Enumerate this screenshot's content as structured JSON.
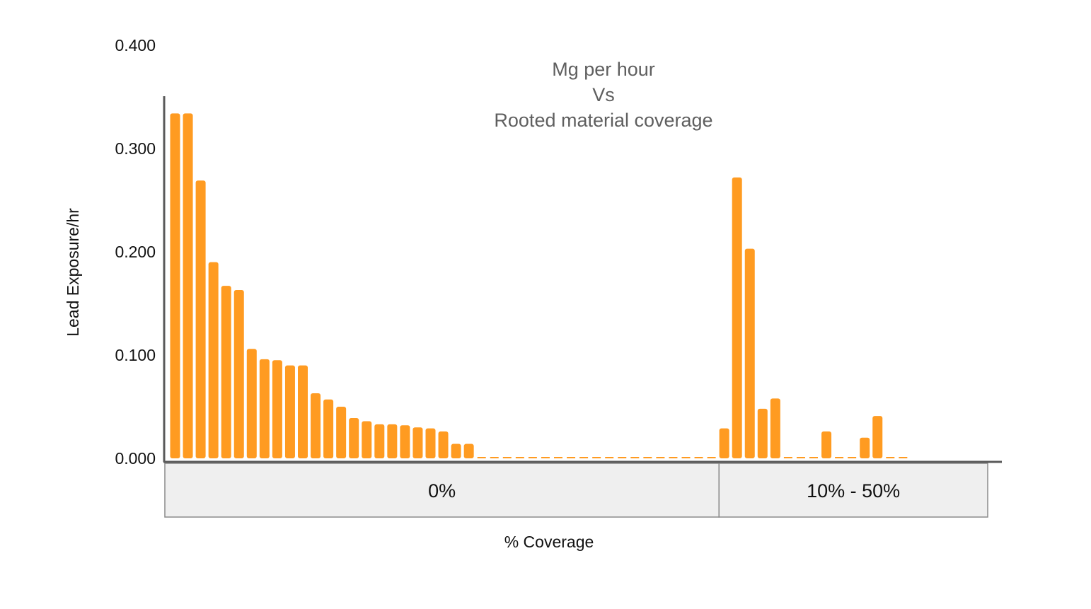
{
  "chart_data": {
    "type": "bar",
    "title_lines": [
      "Mg per hour",
      "Vs",
      "Rooted material coverage"
    ],
    "ylabel": "Lead Exposure/hr",
    "xlabel": "% Coverage",
    "ylim": [
      0,
      0.4
    ],
    "yticks": [
      "0.000",
      "0.100",
      "0.200",
      "0.300",
      "0.400"
    ],
    "color": "#ff9b21",
    "grid": false,
    "legend": "none",
    "groups": [
      {
        "label": "0%",
        "start": 0,
        "count": 43
      },
      {
        "label": "10% - 50%",
        "start": 43,
        "count": 15
      }
    ],
    "values": [
      0.334,
      0.334,
      0.269,
      0.19,
      0.167,
      0.163,
      0.106,
      0.096,
      0.095,
      0.09,
      0.09,
      0.063,
      0.057,
      0.05,
      0.039,
      0.036,
      0.033,
      0.033,
      0.032,
      0.03,
      0.029,
      0.026,
      0.014,
      0.014,
      0,
      0,
      0,
      0,
      0,
      0,
      0,
      0,
      0,
      0,
      0,
      0,
      0,
      0,
      0,
      0,
      0,
      0,
      0,
      0.029,
      0.272,
      0.203,
      0.048,
      0.058,
      0,
      0,
      0,
      0.026,
      0,
      0,
      0.02,
      0.041,
      0,
      0
    ]
  }
}
